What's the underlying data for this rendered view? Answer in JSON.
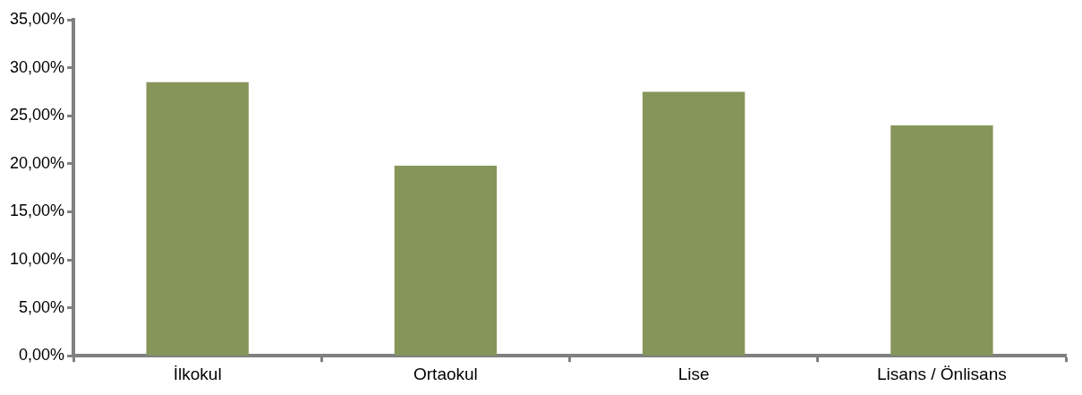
{
  "chart_data": {
    "type": "bar",
    "categories": [
      "İlkokul",
      "Ortaokul",
      "Lise",
      "Lisans / Önlisans"
    ],
    "values": [
      28.5,
      19.8,
      27.5,
      24.0
    ],
    "color": "#86965a",
    "ylim": [
      0,
      35
    ],
    "yticks": [
      {
        "value": 0,
        "label": "0,00%"
      },
      {
        "value": 5,
        "label": "5,00%"
      },
      {
        "value": 10,
        "label": "10,00%"
      },
      {
        "value": 15,
        "label": "15,00%"
      },
      {
        "value": 20,
        "label": "20,00%"
      },
      {
        "value": 25,
        "label": "25,00%"
      },
      {
        "value": 30,
        "label": "30,00%"
      },
      {
        "value": 35,
        "label": "35,00%"
      }
    ],
    "grid": false,
    "legend": false
  }
}
